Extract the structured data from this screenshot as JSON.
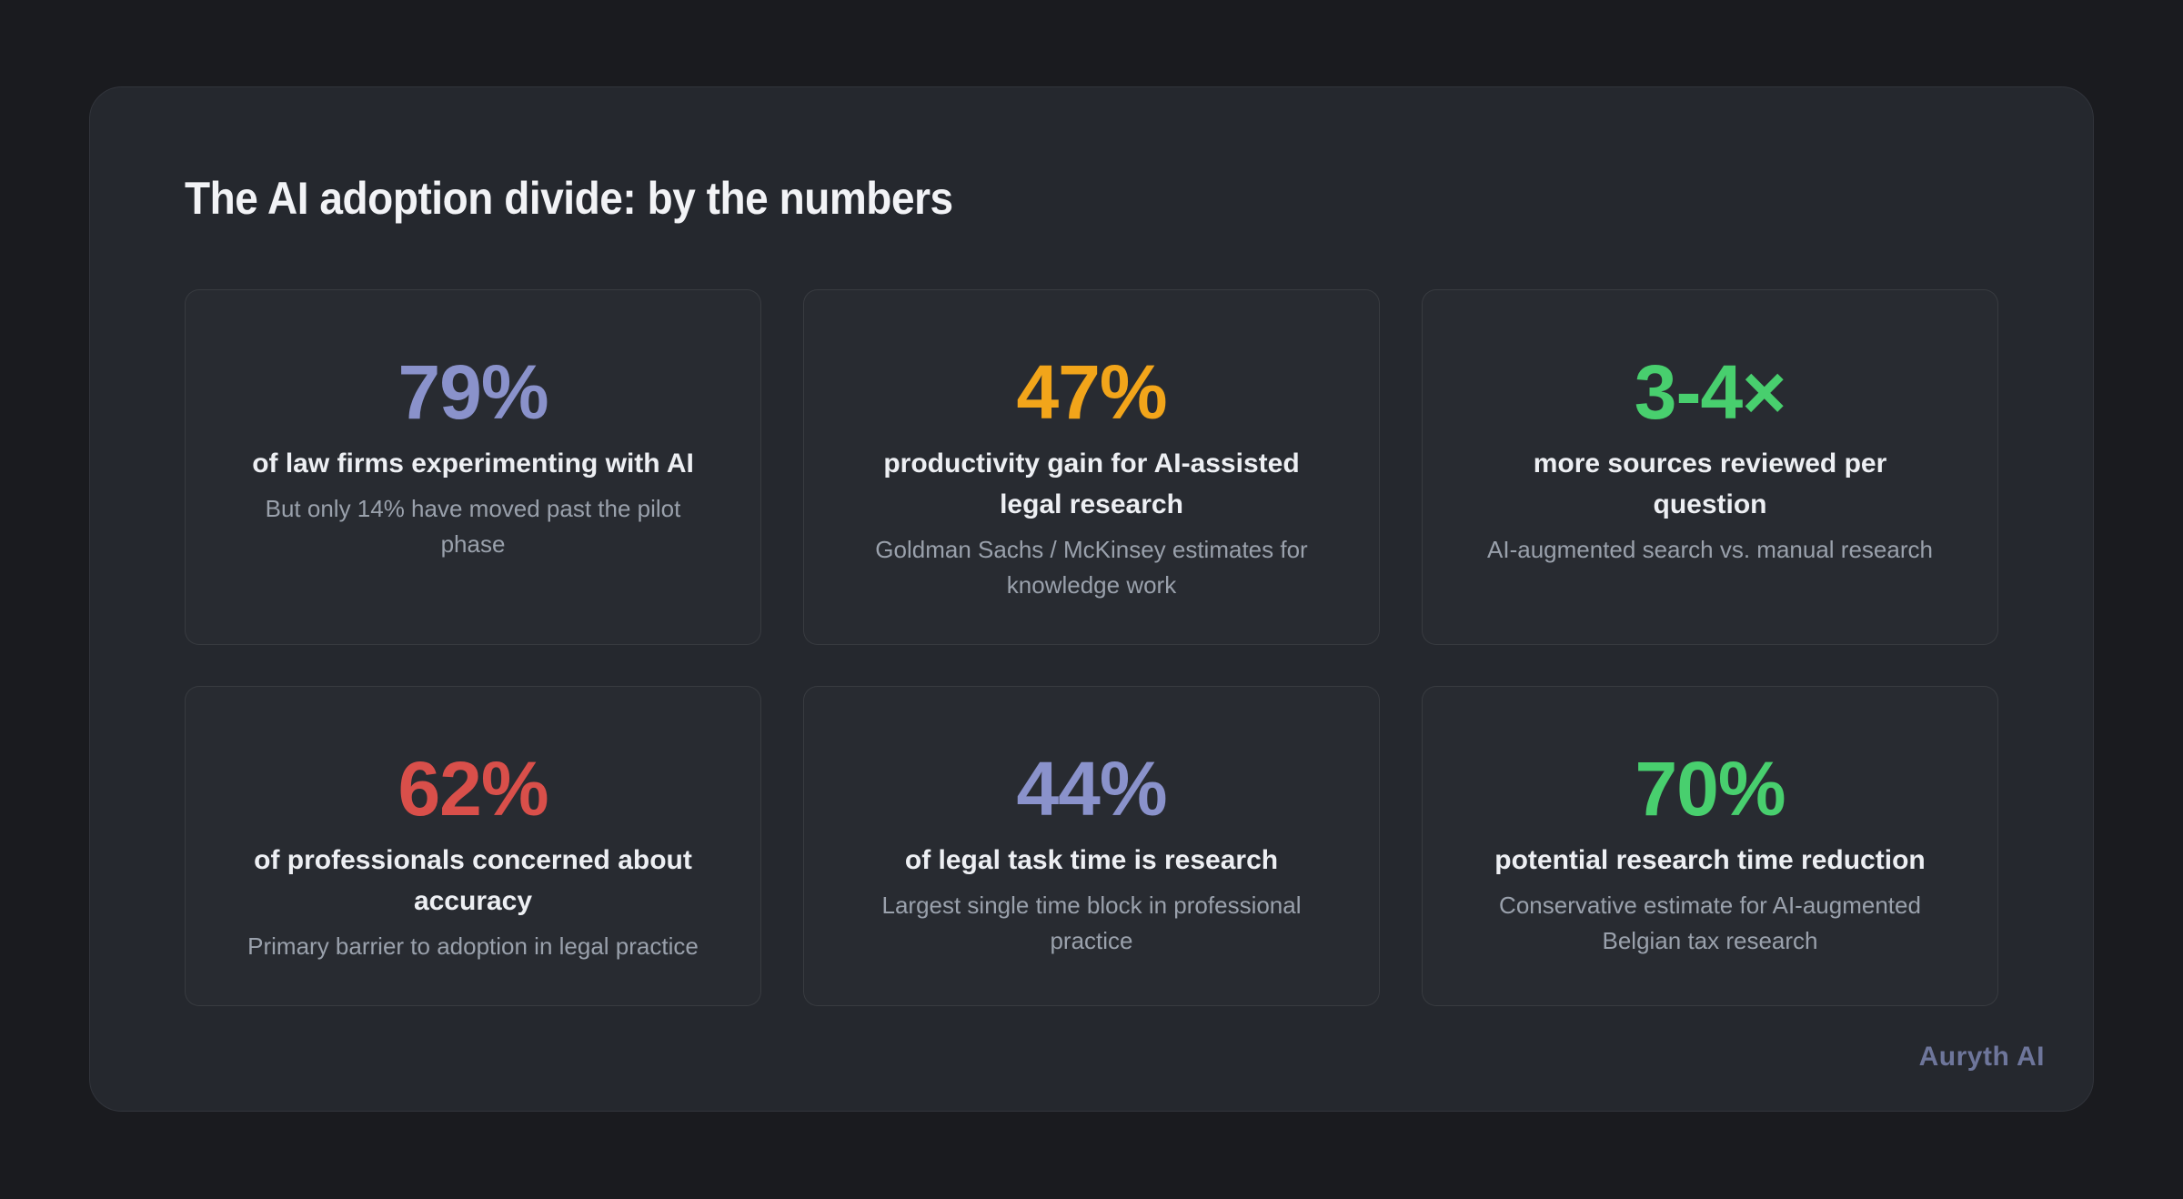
{
  "page": {
    "title": "The AI adoption divide: by the numbers",
    "brand": "Auryth AI"
  },
  "colors": {
    "background": "#1a1b1f",
    "panel": "#25282e",
    "periwinkle": "#8a92cb",
    "orange": "#f2a51a",
    "green": "#48cf6e",
    "red": "#d94f4a",
    "label_text": "#edeff3",
    "note_text": "#9aa1ac",
    "brand_text": "#6e769b"
  },
  "stats": [
    {
      "value": "79%",
      "color_hex": "#8a92cb",
      "label": "of law firms experimenting with AI",
      "note": "But only 14% have moved past the pilot\nphase"
    },
    {
      "value": "47%",
      "color_hex": "#f2a51a",
      "label": "productivity gain for AI-assisted\nlegal research",
      "note": "Goldman Sachs / McKinsey estimates for\nknowledge work"
    },
    {
      "value": "3-4×",
      "color_hex": "#48cf6e",
      "label": "more sources reviewed per\nquestion",
      "note": "AI-augmented search vs. manual research"
    },
    {
      "value": "62%",
      "color_hex": "#d94f4a",
      "label": "of professionals concerned about\naccuracy",
      "note": "Primary barrier to adoption in legal practice"
    },
    {
      "value": "44%",
      "color_hex": "#8a92cb",
      "label": "of legal task time is research",
      "note": "Largest single time block in professional\npractice"
    },
    {
      "value": "70%",
      "color_hex": "#48cf6e",
      "label": "potential research time reduction",
      "note": "Conservative estimate for AI-augmented\nBelgian tax research"
    }
  ],
  "chart_data": {
    "type": "table",
    "title": "The AI adoption divide: by the numbers",
    "columns": [
      "value",
      "metric",
      "context"
    ],
    "rows": [
      [
        "79%",
        "of law firms experimenting with AI",
        "But only 14% have moved past the pilot phase"
      ],
      [
        "47%",
        "productivity gain for AI-assisted legal research",
        "Goldman Sachs / McKinsey estimates for knowledge work"
      ],
      [
        "3-4×",
        "more sources reviewed per question",
        "AI-augmented search vs. manual research"
      ],
      [
        "62%",
        "of professionals concerned about accuracy",
        "Primary barrier to adoption in legal practice"
      ],
      [
        "44%",
        "of legal task time is research",
        "Largest single time block in professional practice"
      ],
      [
        "70%",
        "potential research time reduction",
        "Conservative estimate for AI-augmented Belgian tax research"
      ]
    ],
    "layout": "2 rows x 3 columns of stat cards",
    "source_label": "Auryth AI"
  }
}
